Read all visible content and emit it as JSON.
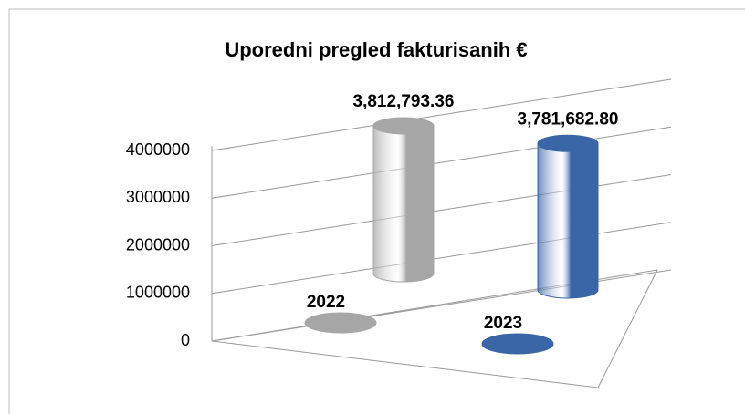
{
  "chart_data": {
    "type": "bar3d",
    "title": "Uporedni pregled fakturisanih €",
    "categories": [
      "2022",
      "2023"
    ],
    "values": [
      3812793.36,
      3781682.8
    ],
    "value_labels": [
      "3,812,793.36",
      "3,781,682.80"
    ],
    "colors": [
      "#a6a6a6",
      "#3a66a8"
    ],
    "ylim": [
      0,
      4000000
    ],
    "yticks": [
      0,
      1000000,
      2000000,
      3000000,
      4000000
    ],
    "grid": true
  }
}
